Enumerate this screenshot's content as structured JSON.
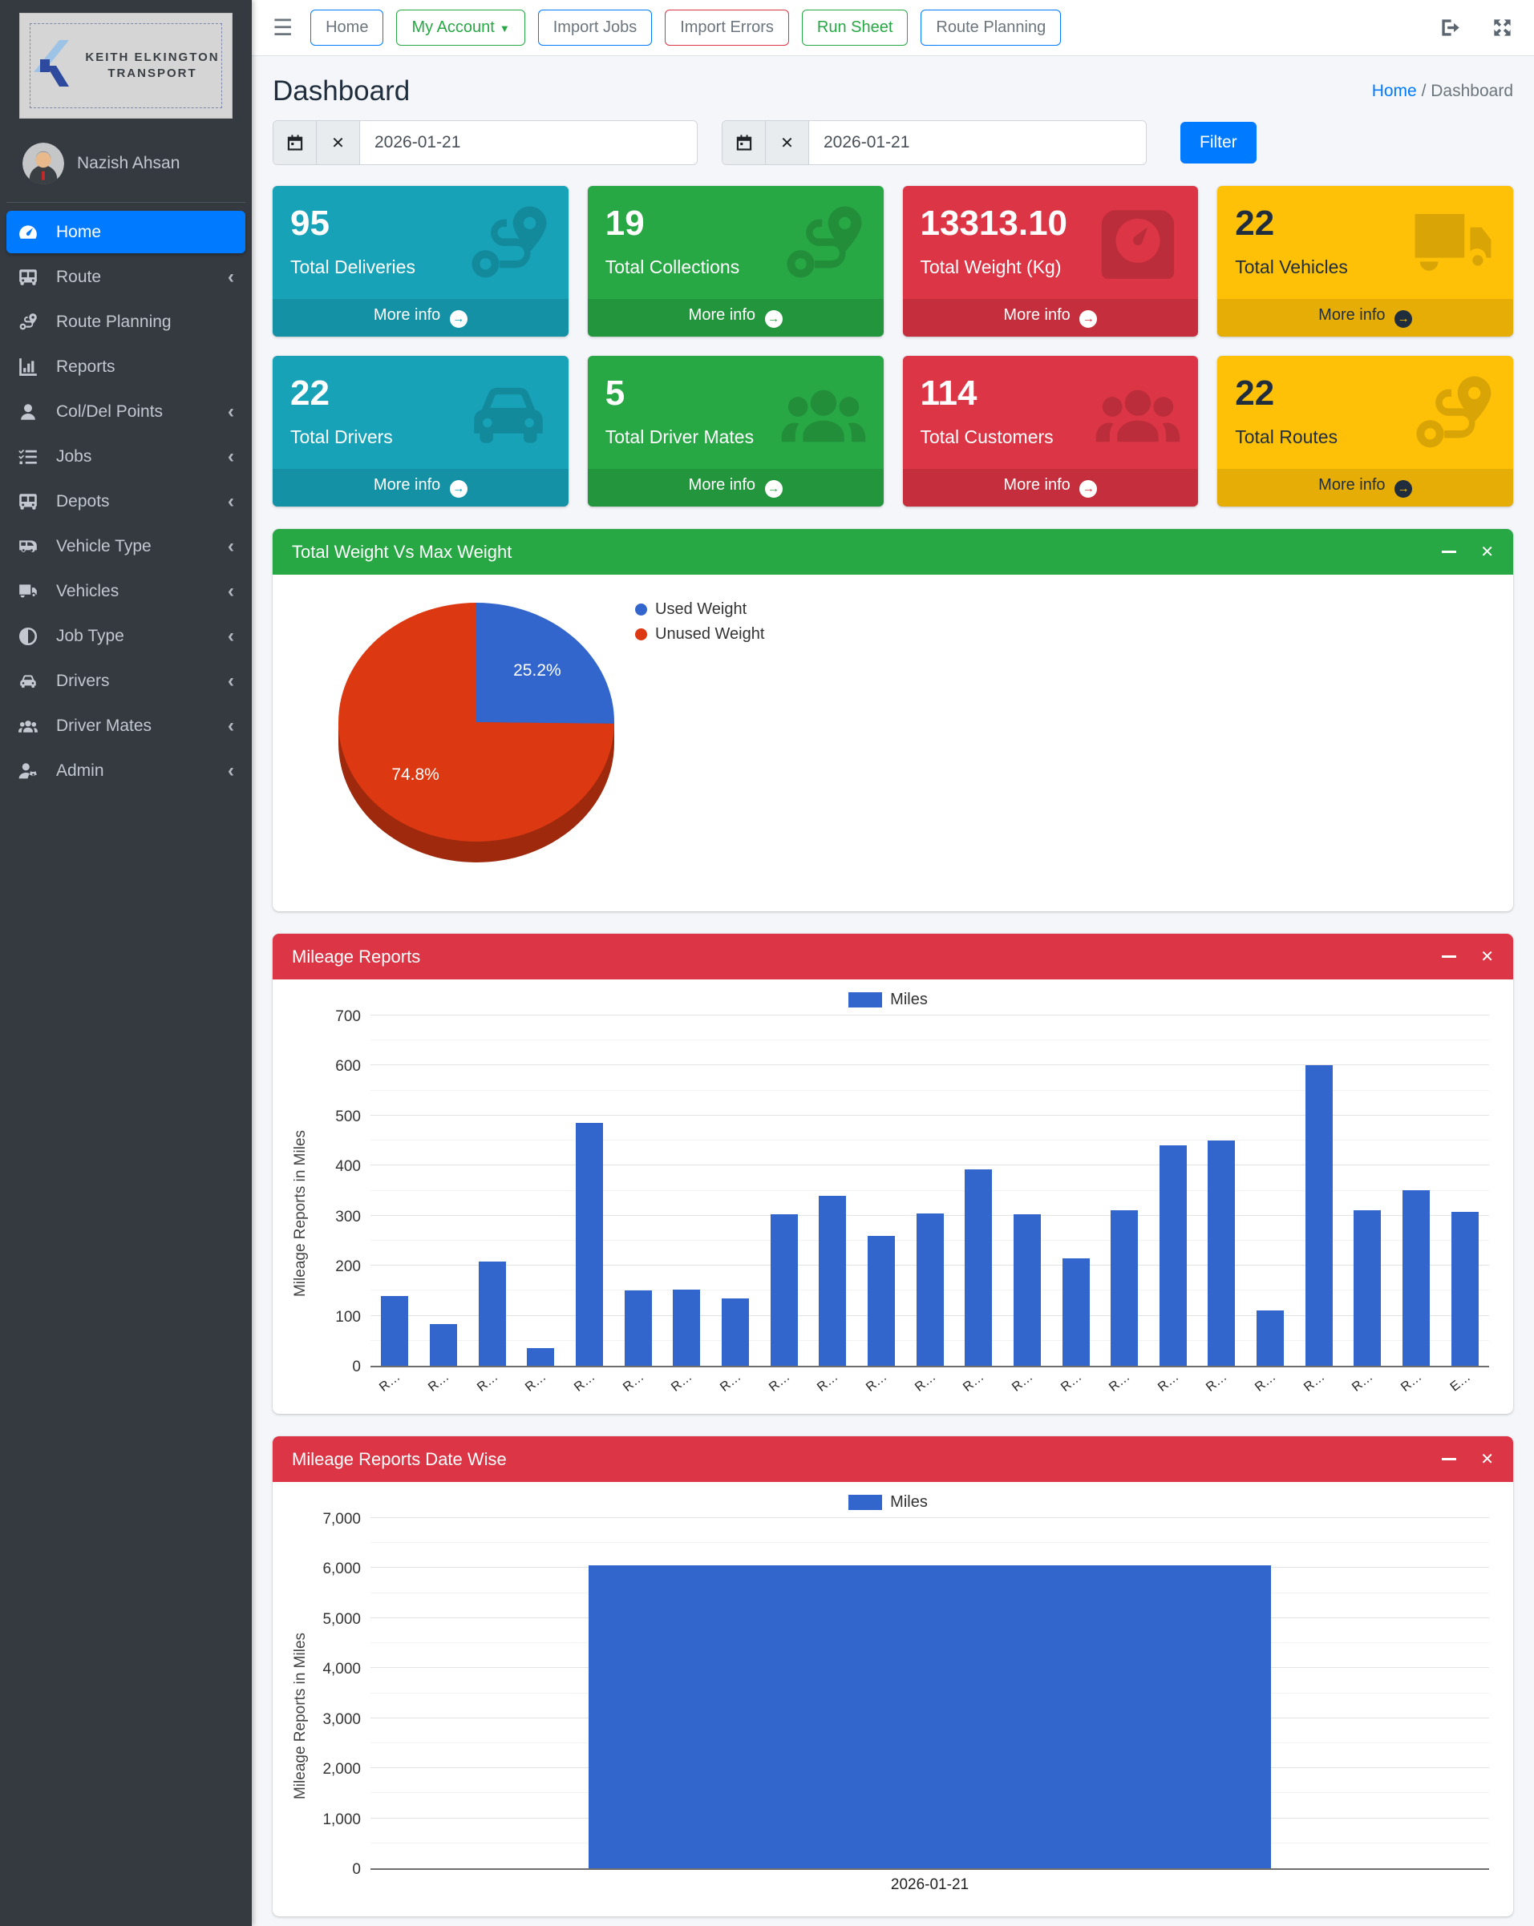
{
  "brand": {
    "line1": "KEITH ELKINGTON",
    "line2": "TRANSPORT"
  },
  "user": {
    "name": "Nazish Ahsan"
  },
  "topnav": {
    "buttons": [
      {
        "label": "Home",
        "border": "#007bff",
        "color": "#6c757d",
        "caret": false
      },
      {
        "label": "My Account",
        "border": "#28a745",
        "color": "#28a745",
        "caret": true
      },
      {
        "label": "Import Jobs",
        "border": "#007bff",
        "color": "#6c757d",
        "caret": false
      },
      {
        "label": "Import Errors",
        "border": "#dc3545",
        "color": "#6c757d",
        "caret": false
      },
      {
        "label": "Run Sheet",
        "border": "#28a745",
        "color": "#28a745",
        "caret": false
      },
      {
        "label": "Route Planning",
        "border": "#007bff",
        "color": "#6c757d",
        "caret": false
      }
    ]
  },
  "sidebar": {
    "items": [
      {
        "label": "Home",
        "icon": "tachometer",
        "active": true,
        "chevron": false
      },
      {
        "label": "Route",
        "icon": "bus",
        "active": false,
        "chevron": true
      },
      {
        "label": "Route Planning",
        "icon": "route",
        "active": false,
        "chevron": false
      },
      {
        "label": "Reports",
        "icon": "chart",
        "active": false,
        "chevron": false
      },
      {
        "label": "Col/Del Points",
        "icon": "user",
        "active": false,
        "chevron": true
      },
      {
        "label": "Jobs",
        "icon": "tasks",
        "active": false,
        "chevron": true
      },
      {
        "label": "Depots",
        "icon": "bus",
        "active": false,
        "chevron": true
      },
      {
        "label": "Vehicle Type",
        "icon": "van",
        "active": false,
        "chevron": true
      },
      {
        "label": "Vehicles",
        "icon": "truck",
        "active": false,
        "chevron": true
      },
      {
        "label": "Job Type",
        "icon": "adjust",
        "active": false,
        "chevron": true
      },
      {
        "label": "Drivers",
        "icon": "car",
        "active": false,
        "chevron": true
      },
      {
        "label": "Driver Mates",
        "icon": "users",
        "active": false,
        "chevron": true
      },
      {
        "label": "Admin",
        "icon": "user-gear",
        "active": false,
        "chevron": true
      }
    ]
  },
  "page": {
    "title": "Dashboard",
    "breadcrumb_home": "Home",
    "breadcrumb_sep": "/",
    "breadcrumb_current": "Dashboard"
  },
  "filters": {
    "date_from": "2026-01-21",
    "date_to": "2026-01-21",
    "filter_label": "Filter"
  },
  "more_info_label": "More info",
  "stat_cards": [
    {
      "value": "95",
      "label": "Total Deliveries",
      "color": "#17a2b8",
      "text": "#ffffff",
      "icon": "route"
    },
    {
      "value": "19",
      "label": "Total Collections",
      "color": "#28a745",
      "text": "#ffffff",
      "icon": "route"
    },
    {
      "value": "13313.10",
      "label": "Total Weight (Kg)",
      "color": "#dc3545",
      "text": "#ffffff",
      "icon": "weight"
    },
    {
      "value": "22",
      "label": "Total Vehicles",
      "color": "#ffc107",
      "text": "#1f2d3d",
      "icon": "truck"
    },
    {
      "value": "22",
      "label": "Total Drivers",
      "color": "#17a2b8",
      "text": "#ffffff",
      "icon": "car"
    },
    {
      "value": "5",
      "label": "Total Driver Mates",
      "color": "#28a745",
      "text": "#ffffff",
      "icon": "users"
    },
    {
      "value": "114",
      "label": "Total Customers",
      "color": "#dc3545",
      "text": "#ffffff",
      "icon": "users"
    },
    {
      "value": "22",
      "label": "Total Routes",
      "color": "#ffc107",
      "text": "#1f2d3d",
      "icon": "route"
    }
  ],
  "chart_data": [
    {
      "type": "pie",
      "panel_title": "Total Weight Vs Max Weight",
      "header_color": "#28a745",
      "labels": [
        "Used Weight",
        "Unused Weight"
      ],
      "values": [
        25.2,
        74.8
      ],
      "value_labels": [
        "25.2%",
        "74.8%"
      ],
      "colors": [
        "#3366cc",
        "#dc3912"
      ],
      "legend_position": "right"
    },
    {
      "type": "bar",
      "panel_title": "Mileage Reports",
      "header_color": "#dc3545",
      "legend": "Miles",
      "bar_color": "#3366cc",
      "ylabel": "Mileage Reports in Miles",
      "ylim": [
        0,
        700
      ],
      "ytick_step": 100,
      "categories": [
        "R…",
        "R…",
        "R…",
        "R…",
        "R…",
        "R…",
        "R…",
        "R…",
        "R…",
        "R…",
        "R…",
        "R…",
        "R…",
        "R…",
        "R…",
        "R…",
        "R…",
        "R…",
        "R…",
        "R…",
        "R…",
        "R…",
        "E…"
      ],
      "values": [
        140,
        83,
        208,
        35,
        485,
        150,
        152,
        135,
        302,
        340,
        260,
        305,
        393,
        302,
        215,
        310,
        440,
        450,
        110,
        600,
        310,
        351,
        307
      ]
    },
    {
      "type": "bar",
      "panel_title": "Mileage Reports Date Wise",
      "header_color": "#dc3545",
      "legend": "Miles",
      "bar_color": "#3366cc",
      "ylabel": "Mileage Reports in Miles",
      "ylim": [
        0,
        7000
      ],
      "ytick_step": 1000,
      "categories": [
        "2026-01-21"
      ],
      "values": [
        6050
      ],
      "bar_width_pct": 61
    }
  ]
}
